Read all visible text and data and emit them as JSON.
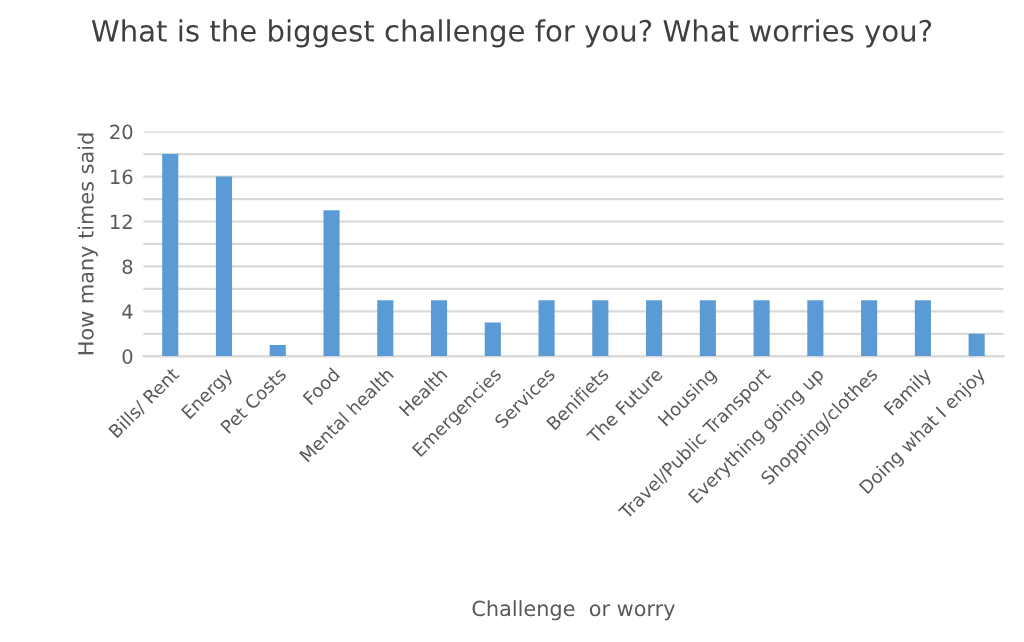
{
  "chart_data": {
    "type": "bar",
    "title": "What is the biggest challenge for you? What worries you?",
    "xlabel": "Challenge  or worry",
    "ylabel": "How many times said",
    "categories": [
      "Bills/ Rent",
      "Energy",
      "Pet Costs",
      "Food",
      "Mental health",
      "Health",
      "Emergencies",
      "Services",
      "Benifiets",
      "The Future",
      "Housing",
      "Travel/Public Transport",
      "Everything going up",
      "Shopping/clothes",
      "Family",
      "Doing what I enjoy"
    ],
    "values": [
      18,
      16,
      1,
      13,
      5,
      5,
      3,
      5,
      5,
      5,
      5,
      5,
      5,
      5,
      5,
      2
    ],
    "color": "#5b9bd5",
    "ylim": [
      0,
      20
    ],
    "yticks": [
      0,
      {
        "value": 2,
        "label": null
      },
      4,
      {
        "value": 6,
        "label": null
      },
      8,
      {
        "value": 10,
        "label": null
      },
      12,
      {
        "value": 14,
        "label": null
      },
      16,
      {
        "value": 18,
        "label": null
      },
      20
    ],
    "grid": "y"
  }
}
